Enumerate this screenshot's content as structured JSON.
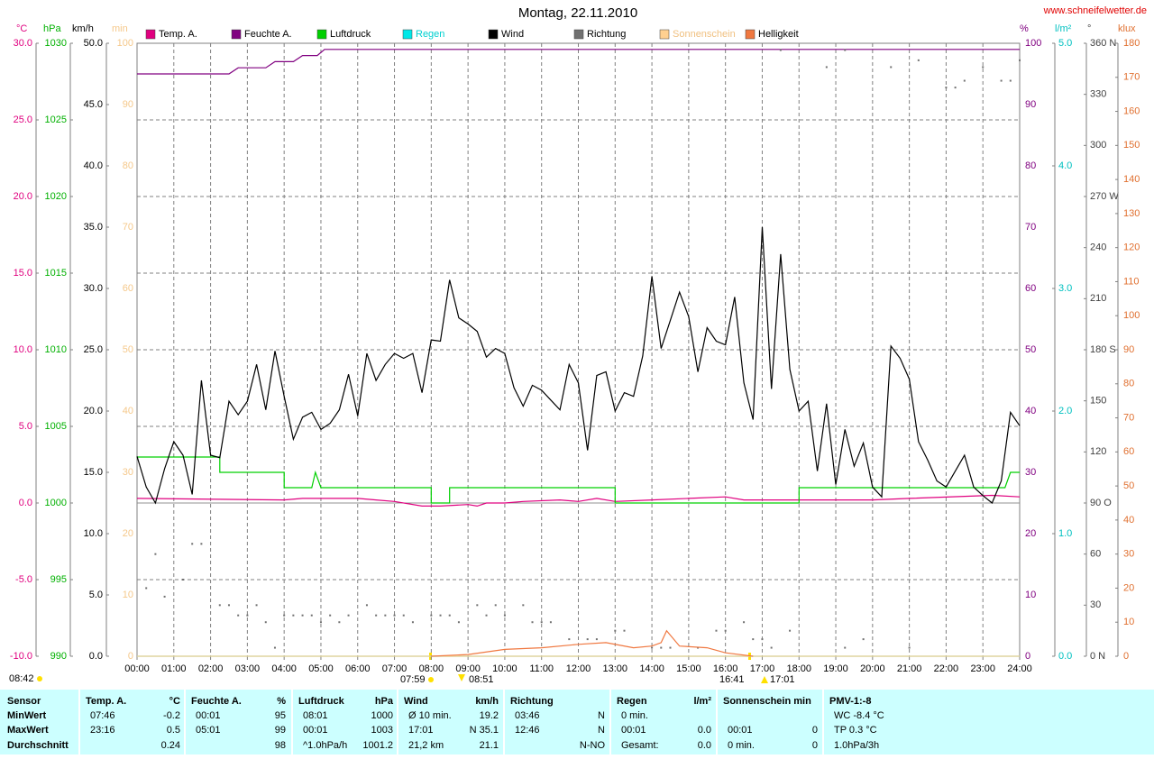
{
  "chart_data": {
    "type": "line",
    "title": "Montag, 22.11.2010",
    "source": "www.schneifelwetter.de",
    "grid": true,
    "xlim": [
      0,
      24
    ],
    "xticks": [
      {
        "value": 0,
        "label": "00:00"
      },
      {
        "value": 1,
        "label": "01:00"
      },
      {
        "value": 2,
        "label": "02:00"
      },
      {
        "value": 3,
        "label": "03:00"
      },
      {
        "value": 4,
        "label": "04:00"
      },
      {
        "value": 5,
        "label": "05:00"
      },
      {
        "value": 6,
        "label": "06:00"
      },
      {
        "value": 7,
        "label": "07:00"
      },
      {
        "value": 8,
        "label": "08:00"
      },
      {
        "value": 9,
        "label": "09:00"
      },
      {
        "value": 10,
        "label": "10:00"
      },
      {
        "value": 11,
        "label": "11:00"
      },
      {
        "value": 12,
        "label": "12:00"
      },
      {
        "value": 13,
        "label": "13:00"
      },
      {
        "value": 14,
        "label": "14:00"
      },
      {
        "value": 15,
        "label": "15:00"
      },
      {
        "value": 16,
        "label": "16:00"
      },
      {
        "value": 17,
        "label": "17:00"
      },
      {
        "value": 18,
        "label": "18:00"
      },
      {
        "value": 19,
        "label": "19:00"
      },
      {
        "value": 20,
        "label": "20:00"
      },
      {
        "value": 21,
        "label": "21:00"
      },
      {
        "value": 22,
        "label": "22:00"
      },
      {
        "value": 23,
        "label": "23:00"
      },
      {
        "value": 24,
        "label": "24:00"
      }
    ],
    "axes": [
      {
        "unit": "°C",
        "color": "#e0007f",
        "lim": [
          -10,
          30
        ],
        "ticks": [
          {
            "value": -10,
            "label": "-10.0"
          },
          {
            "value": -5,
            "label": "-5.0"
          },
          {
            "value": 0,
            "label": "0.0"
          },
          {
            "value": 5,
            "label": "5.0"
          },
          {
            "value": 10,
            "label": "10.0"
          },
          {
            "value": 15,
            "label": "15.0"
          },
          {
            "value": 20,
            "label": "20.0"
          },
          {
            "value": 25,
            "label": "25.0"
          },
          {
            "value": 30,
            "label": "30.0"
          }
        ]
      },
      {
        "unit": "hPa",
        "color": "#00b000",
        "lim": [
          990,
          1030
        ],
        "ticks": [
          990,
          995,
          1000,
          1005,
          1010,
          1015,
          1020,
          1025,
          1030
        ]
      },
      {
        "unit": "km/h",
        "color": "#000000",
        "lim": [
          0,
          50
        ],
        "ticks": [
          {
            "value": 0,
            "label": "0.0"
          },
          {
            "value": 5,
            "label": "5.0"
          },
          {
            "value": 10,
            "label": "10.0"
          },
          {
            "value": 15,
            "label": "15.0"
          },
          {
            "value": 20,
            "label": "20.0"
          },
          {
            "value": 25,
            "label": "25.0"
          },
          {
            "value": 30,
            "label": "30.0"
          },
          {
            "value": 35,
            "label": "35.0"
          },
          {
            "value": 40,
            "label": "40.0"
          },
          {
            "value": 45,
            "label": "45.0"
          },
          {
            "value": 50,
            "label": "50.0"
          }
        ]
      },
      {
        "unit": "min",
        "color": "#f5c88a",
        "lim": [
          0,
          100
        ],
        "ticks": [
          0,
          10,
          20,
          30,
          40,
          50,
          60,
          70,
          80,
          90,
          100
        ]
      },
      {
        "unit": "%",
        "color": "#800080",
        "lim": [
          0,
          100
        ],
        "ticks": [
          0,
          10,
          20,
          30,
          40,
          50,
          60,
          70,
          80,
          90,
          100
        ]
      },
      {
        "unit": "l/m²",
        "color": "#00c0c0",
        "lim": [
          0,
          5
        ],
        "ticks": [
          {
            "value": 0,
            "label": "0.0"
          },
          {
            "value": 1,
            "label": "1.0"
          },
          {
            "value": 2,
            "label": "2.0"
          },
          {
            "value": 3,
            "label": "3.0"
          },
          {
            "value": 4,
            "label": "4.0"
          },
          {
            "value": 5,
            "label": "5.0"
          }
        ]
      },
      {
        "unit": "°",
        "color": "#404040",
        "lim": [
          0,
          360
        ],
        "ticks": [
          {
            "value": 0,
            "label": "0 N"
          },
          30,
          60,
          {
            "value": 90,
            "label": "90 O"
          },
          120,
          150,
          {
            "value": 180,
            "label": "180 S"
          },
          210,
          240,
          {
            "value": 270,
            "label": "270 W"
          },
          300,
          330,
          {
            "value": 360,
            "label": "360 N"
          }
        ]
      },
      {
        "unit": "klux",
        "color": "#e07030",
        "lim": [
          0,
          180
        ],
        "ticks": [
          0,
          10,
          20,
          30,
          40,
          50,
          60,
          70,
          80,
          90,
          100,
          110,
          120,
          130,
          140,
          150,
          160,
          170,
          180
        ]
      }
    ],
    "series": [
      {
        "name": "Temp. A.",
        "color": "#e0007f",
        "axis": 0,
        "type": "line",
        "x": [
          0,
          4,
          4.5,
          6,
          6.5,
          7,
          7.75,
          8.25,
          9,
          9.25,
          9.5,
          10,
          10.5,
          11.5,
          12,
          12.5,
          13,
          14,
          15,
          16,
          16.5,
          20,
          21,
          23.25,
          24
        ],
        "values": [
          0.3,
          0.2,
          0.3,
          0.3,
          0.2,
          0.1,
          -0.2,
          -0.2,
          -0.1,
          -0.2,
          0,
          0,
          0.1,
          0.2,
          0.1,
          0.3,
          0.1,
          0.2,
          0.3,
          0.4,
          0.2,
          0.2,
          0.3,
          0.5,
          0.4
        ]
      },
      {
        "name": "Feuchte A.",
        "color": "#800080",
        "axis": 4,
        "type": "line",
        "x": [
          0,
          2.5,
          2.75,
          3.5,
          3.75,
          4.25,
          4.5,
          4.9,
          5.1,
          24
        ],
        "values": [
          95,
          95,
          96,
          96,
          97,
          97,
          98,
          98,
          99,
          99
        ]
      },
      {
        "name": "Luftdruck",
        "color": "#00d000",
        "axis": 1,
        "type": "line",
        "x": [
          0,
          2.25,
          2.25,
          4,
          4,
          4.75,
          4.85,
          5,
          8,
          8,
          8.5,
          8.5,
          13,
          13,
          18,
          18,
          23.6,
          23.75,
          24
        ],
        "values": [
          1003,
          1003,
          1002,
          1002,
          1001,
          1001,
          1002,
          1001,
          1001,
          1000,
          1000,
          1001,
          1001,
          1000,
          1000,
          1001,
          1001,
          1002,
          1002
        ]
      },
      {
        "name": "Regen",
        "color": "#00e8e8",
        "label_color": "#00d0d0",
        "axis": 5,
        "type": "line",
        "x": [
          0,
          24
        ],
        "values": [
          0,
          0
        ]
      },
      {
        "name": "Wind",
        "color": "#000000",
        "axis": 2,
        "type": "line",
        "x": [
          0,
          0.25,
          0.5,
          0.75,
          1,
          1.25,
          1.5,
          1.75,
          2,
          2.25,
          2.5,
          2.75,
          3,
          3.25,
          3.5,
          3.75,
          4,
          4.25,
          4.5,
          4.75,
          5,
          5.25,
          5.5,
          5.75,
          6,
          6.25,
          6.5,
          6.75,
          7,
          7.25,
          7.5,
          7.75,
          8,
          8.25,
          8.5,
          8.75,
          9,
          9.25,
          9.5,
          9.75,
          10,
          10.25,
          10.5,
          10.75,
          11,
          11.25,
          11.5,
          11.75,
          12,
          12.25,
          12.5,
          12.75,
          13,
          13.25,
          13.5,
          13.75,
          14,
          14.25,
          14.5,
          14.75,
          15,
          15.25,
          15.5,
          15.75,
          16,
          16.25,
          16.5,
          16.75,
          17,
          17.25,
          17.5,
          17.75,
          18,
          18.25,
          18.5,
          18.75,
          19,
          19.25,
          19.5,
          19.75,
          20,
          20.25,
          20.5,
          20.75,
          21,
          21.25,
          21.5,
          21.75,
          22,
          22.25,
          22.5,
          22.75,
          23,
          23.25,
          23.5,
          23.75,
          24
        ],
        "values": [
          16.3,
          13.8,
          12.5,
          15.3,
          17.5,
          16.4,
          13.2,
          22.5,
          16.4,
          16.2,
          20.8,
          19.7,
          20.8,
          23.8,
          20.1,
          24.9,
          21.2,
          17.7,
          19.5,
          19.9,
          18.5,
          19.0,
          20.1,
          23.0,
          19.6,
          24.7,
          22.5,
          23.8,
          24.7,
          24.3,
          24.7,
          21.5,
          25.8,
          25.7,
          30.7,
          27.6,
          27.1,
          26.5,
          24.4,
          25.1,
          24.7,
          21.9,
          20.4,
          22.1,
          21.7,
          20.9,
          20.1,
          23.8,
          22.3,
          16.8,
          22.9,
          23.2,
          20.0,
          21.5,
          21.2,
          24.5,
          31.0,
          25.1,
          27.4,
          29.7,
          27.7,
          23.2,
          26.8,
          25.7,
          25.4,
          29.3,
          22.3,
          19.3,
          35.0,
          21.8,
          32.8,
          23.4,
          20.0,
          20.8,
          15.1,
          20.6,
          14.0,
          18.5,
          15.5,
          17.4,
          13.8,
          13.0,
          25.3,
          24.3,
          22.6,
          17.5,
          16.0,
          14.3,
          13.8,
          15.1,
          16.4,
          13.8,
          13.1,
          12.5,
          14.3,
          19.9,
          18.8
        ]
      },
      {
        "name": "Richtung",
        "color": "#707070",
        "axis": 6,
        "type": "scatter",
        "x": [
          0.25,
          0.5,
          0.75,
          1.25,
          1.5,
          1.75,
          2.25,
          2.5,
          2.75,
          3,
          3.25,
          3.5,
          3.75,
          4,
          4.25,
          4.5,
          4.75,
          5,
          5.25,
          5.5,
          5.75,
          6.25,
          6.5,
          6.75,
          7,
          7.25,
          7.5,
          8,
          8.25,
          8.5,
          8.75,
          9.25,
          9.5,
          9.75,
          10,
          10.5,
          10.75,
          11,
          11.25,
          11.75,
          12.25,
          12.5,
          13,
          13.25,
          14,
          14.25,
          14.5,
          15.25,
          15.75,
          16,
          16.5,
          16.75,
          17,
          17.25,
          17.5,
          17.75,
          18.75,
          19.25,
          19.25,
          19.75,
          20.5,
          21,
          21.25,
          22,
          22.25,
          22.5,
          23,
          23.5,
          23.75,
          24
        ],
        "values": [
          40,
          60,
          35,
          45,
          66,
          66,
          30,
          30,
          24,
          24,
          30,
          20,
          5,
          24,
          24,
          24,
          24,
          20,
          24,
          20,
          24,
          30,
          24,
          24,
          24,
          24,
          20,
          24,
          24,
          24,
          20,
          30,
          24,
          30,
          24,
          30,
          20,
          20,
          20,
          10,
          10,
          10,
          15,
          15,
          5,
          5,
          5,
          5,
          15,
          15,
          20,
          10,
          10,
          5,
          356,
          15,
          346,
          5,
          356,
          10,
          346,
          5,
          350,
          334,
          334,
          338,
          346,
          338,
          338,
          350
        ]
      },
      {
        "name": "Sonnenschein",
        "color": "#ffd090",
        "label_color": "#f0c080",
        "axis": 3,
        "type": "line",
        "x": [
          0,
          24
        ],
        "values": [
          0,
          0
        ]
      },
      {
        "name": "Helligkeit",
        "color": "#f07840",
        "axis": 7,
        "type": "line",
        "x": [
          8,
          9,
          10,
          11,
          12,
          12.75,
          13.5,
          14,
          14.25,
          14.4,
          14.75,
          15.5,
          16,
          16.75
        ],
        "values": [
          0,
          0.5,
          2,
          2.5,
          3.5,
          4,
          2.5,
          3,
          4,
          7.5,
          3,
          2.5,
          1,
          0
        ]
      }
    ],
    "annotations": [
      "08:42",
      "07:59",
      "08:51",
      "16:41",
      "17:01"
    ]
  },
  "table": {
    "groups": [
      {
        "title": "Sensor",
        "rows": [
          {
            "l": "MinWert"
          },
          {
            "l": "MaxWert"
          },
          {
            "l": "Durchschnitt"
          }
        ]
      },
      {
        "title": "Temp. A.",
        "unit": "°C",
        "rows": [
          {
            "l": "07:46",
            "r": "-0.2"
          },
          {
            "l": "23:16",
            "r": "0.5"
          },
          {
            "r": "0.24"
          }
        ]
      },
      {
        "title": "Feuchte A.",
        "unit": "%",
        "rows": [
          {
            "l": "00:01",
            "r": "95"
          },
          {
            "l": "05:01",
            "r": "99"
          },
          {
            "r": "98"
          }
        ]
      },
      {
        "title": "Luftdruck",
        "unit": "hPa",
        "rows": [
          {
            "l": "08:01",
            "r": "1000"
          },
          {
            "l": "00:01",
            "r": "1003"
          },
          {
            "l": "^1.0hPa/h",
            "r": "1001.2"
          }
        ]
      },
      {
        "title": "Wind",
        "unit": "km/h",
        "rows": [
          {
            "l": "Ø 10 min.",
            "r": "19.2"
          },
          {
            "l": "17:01",
            "r": "N 35.1"
          },
          {
            "l": "21,2 km",
            "r": "21.1"
          }
        ]
      },
      {
        "title": "Richtung",
        "rows": [
          {
            "l": "03:46",
            "r": "N"
          },
          {
            "l": "12:46",
            "r": "N"
          },
          {
            "r": "N-NO"
          }
        ]
      },
      {
        "title": "Regen",
        "unit": "l/m²",
        "rows": [
          {
            "l": "0 min."
          },
          {
            "l": "00:01",
            "r": "0.0"
          },
          {
            "l": "Gesamt:",
            "r": "0.0"
          }
        ]
      },
      {
        "title": "Sonnenschein min",
        "rows": [
          {},
          {
            "l": "00:01",
            "r": "0"
          },
          {
            "l": "0 min.",
            "r": "0"
          }
        ]
      },
      {
        "title": "PMV-1:-8",
        "rows": [
          {
            "l": "WC -8.4 °C"
          },
          {
            "l": "TP 0.3 °C"
          },
          {
            "l": "1.0hPa/3h"
          }
        ]
      }
    ]
  }
}
